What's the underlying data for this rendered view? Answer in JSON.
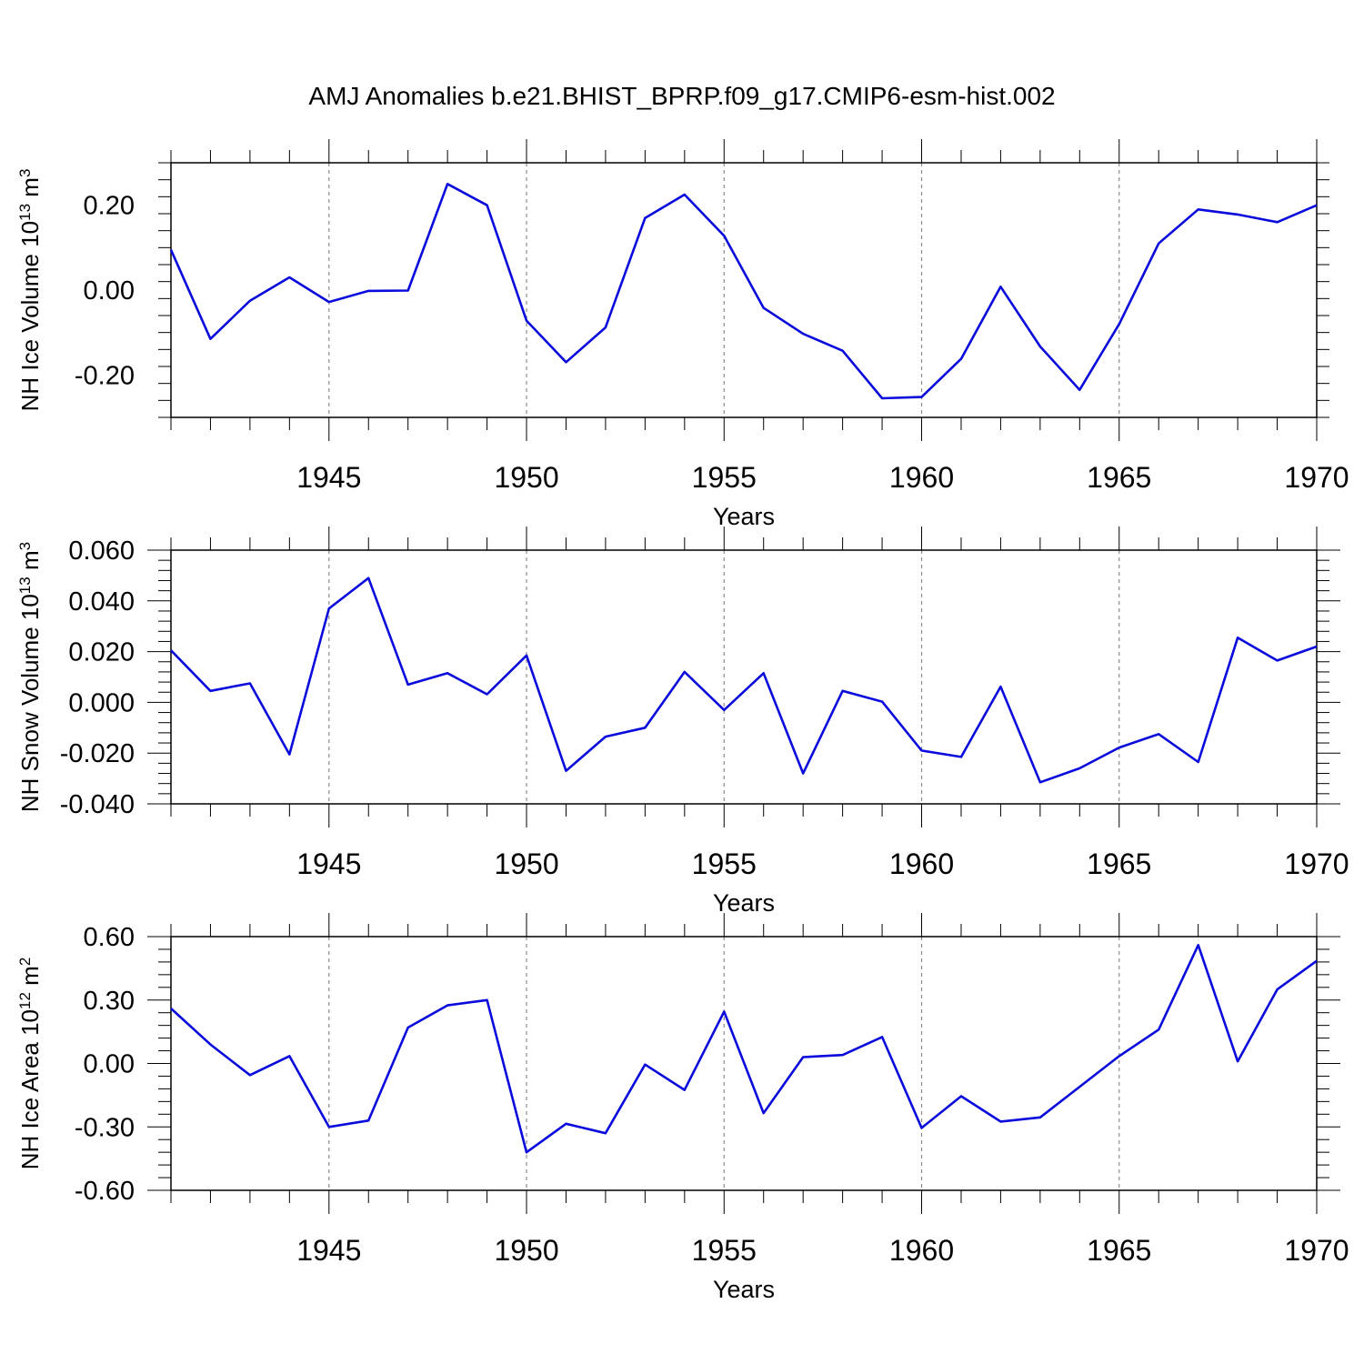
{
  "title": "AMJ Anomalies b.e21.BHIST_BPRP.f09_g17.CMIP6-esm-hist.002",
  "colors": {
    "line": "#0a0adc",
    "axis": "#000000",
    "grid": "#8c8c8c",
    "background": "#ffffff"
  },
  "chart_data": [
    {
      "type": "line",
      "ylabel": {
        "main": "NH Ice Volume 10",
        "sup": "13",
        "unit": " m",
        "unit_sup": "3"
      },
      "xlabel": "Years",
      "xlim": [
        1941,
        1970
      ],
      "ylim": [
        -0.3,
        0.3
      ],
      "xticks": [
        1945,
        1950,
        1955,
        1960,
        1965,
        1970
      ],
      "xtick_labels": [
        "1945",
        "1950",
        "1955",
        "1960",
        "1965",
        "1970"
      ],
      "yticks": [
        -0.2,
        0.0,
        0.2
      ],
      "ytick_labels": [
        "-0.20",
        "0.00",
        "0.20"
      ],
      "grid": "vertical dashed at major x ticks",
      "series": [
        {
          "x": [
            1941,
            1942,
            1943,
            1944,
            1945,
            1946,
            1947,
            1948,
            1949,
            1950,
            1951,
            1952,
            1953,
            1954,
            1955,
            1956,
            1957,
            1958,
            1959,
            1960,
            1961,
            1962,
            1963,
            1964,
            1965,
            1966,
            1967,
            1968,
            1969,
            1970
          ],
          "values": [
            0.095,
            -0.115,
            -0.025,
            0.03,
            -0.028,
            -0.002,
            -0.001,
            0.25,
            0.2,
            -0.072,
            -0.17,
            -0.088,
            0.17,
            0.225,
            0.128,
            -0.042,
            -0.103,
            -0.143,
            -0.255,
            -0.252,
            -0.162,
            0.008,
            -0.133,
            -0.235,
            -0.08,
            0.11,
            0.19,
            0.178,
            0.16,
            0.2
          ]
        }
      ]
    },
    {
      "type": "line",
      "ylabel": {
        "main": "NH Snow Volume 10",
        "sup": "13",
        "unit": " m",
        "unit_sup": "3"
      },
      "xlabel": "Years",
      "xlim": [
        1941,
        1970
      ],
      "ylim": [
        -0.04,
        0.06
      ],
      "xticks": [
        1945,
        1950,
        1955,
        1960,
        1965,
        1970
      ],
      "xtick_labels": [
        "1945",
        "1950",
        "1955",
        "1960",
        "1965",
        "1970"
      ],
      "yticks": [
        -0.04,
        -0.02,
        0.0,
        0.02,
        0.04,
        0.06
      ],
      "ytick_labels": [
        "-0.040",
        "-0.020",
        "0.000",
        "0.020",
        "0.040",
        "0.060"
      ],
      "grid": "vertical dashed at major x ticks",
      "series": [
        {
          "x": [
            1941,
            1942,
            1943,
            1944,
            1945,
            1946,
            1947,
            1948,
            1949,
            1950,
            1951,
            1952,
            1953,
            1954,
            1955,
            1956,
            1957,
            1958,
            1959,
            1960,
            1961,
            1962,
            1963,
            1964,
            1965,
            1966,
            1967,
            1968,
            1969,
            1970
          ],
          "values": [
            0.0205,
            0.0045,
            0.0075,
            -0.0205,
            0.037,
            0.049,
            0.007,
            0.0115,
            0.0032,
            0.0185,
            -0.027,
            -0.0135,
            -0.01,
            0.012,
            -0.003,
            0.0115,
            -0.028,
            0.0045,
            0.0003,
            -0.019,
            -0.0215,
            0.0062,
            -0.0315,
            -0.026,
            -0.0178,
            -0.0125,
            -0.0235,
            0.0255,
            0.0165,
            0.022
          ]
        }
      ]
    },
    {
      "type": "line",
      "ylabel": {
        "main": "NH Ice Area 10",
        "sup": "12",
        "unit": " m",
        "unit_sup": "2"
      },
      "xlabel": "Years",
      "xlim": [
        1941,
        1970
      ],
      "ylim": [
        -0.6,
        0.6
      ],
      "xticks": [
        1945,
        1950,
        1955,
        1960,
        1965,
        1970
      ],
      "xtick_labels": [
        "1945",
        "1950",
        "1955",
        "1960",
        "1965",
        "1970"
      ],
      "yticks": [
        -0.6,
        -0.3,
        0.0,
        0.3,
        0.6
      ],
      "ytick_labels": [
        "-0.60",
        "-0.30",
        "0.00",
        "0.30",
        "0.60"
      ],
      "grid": "vertical dashed at major x ticks",
      "series": [
        {
          "x": [
            1941,
            1942,
            1943,
            1944,
            1945,
            1946,
            1947,
            1948,
            1949,
            1950,
            1951,
            1952,
            1953,
            1954,
            1955,
            1956,
            1957,
            1958,
            1959,
            1960,
            1961,
            1962,
            1963,
            1964,
            1965,
            1966,
            1967,
            1968,
            1969,
            1970
          ],
          "values": [
            0.26,
            0.09,
            -0.055,
            0.035,
            -0.3,
            -0.27,
            0.17,
            0.275,
            0.3,
            -0.42,
            -0.285,
            -0.33,
            -0.005,
            -0.125,
            0.245,
            -0.235,
            0.03,
            0.04,
            0.125,
            -0.305,
            -0.155,
            -0.275,
            -0.255,
            -0.11,
            0.035,
            0.16,
            0.56,
            0.01,
            0.35,
            0.485
          ]
        }
      ]
    }
  ]
}
